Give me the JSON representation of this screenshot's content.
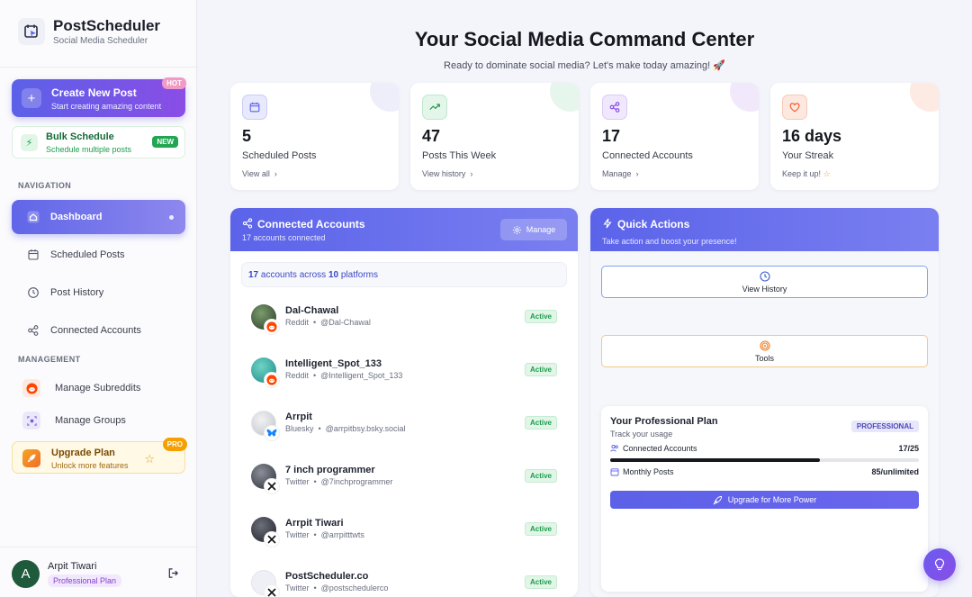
{
  "app": {
    "name": "PostScheduler",
    "tagline": "Social Media Scheduler"
  },
  "sidebar": {
    "create": {
      "title": "Create New Post",
      "subtitle": "Start creating amazing content",
      "badge": "HOT"
    },
    "bulk": {
      "title": "Bulk Schedule",
      "subtitle": "Schedule multiple posts",
      "badge": "NEW"
    },
    "nav_label": "NAVIGATION",
    "nav": [
      {
        "label": "Dashboard",
        "icon": "home-icon"
      },
      {
        "label": "Scheduled Posts",
        "icon": "calendar-icon"
      },
      {
        "label": "Post History",
        "icon": "clock-icon"
      },
      {
        "label": "Connected Accounts",
        "icon": "share-icon"
      }
    ],
    "mgmt_label": "MANAGEMENT",
    "mgmt": [
      {
        "label": "Manage Subreddits",
        "icon": "reddit-icon"
      },
      {
        "label": "Manage Groups",
        "icon": "group-icon"
      }
    ],
    "upgrade": {
      "title": "Upgrade Plan",
      "subtitle": "Unlock more features",
      "badge": "PRO"
    },
    "user": {
      "initial": "A",
      "name": "Arpit Tiwari",
      "plan": "Professional Plan"
    }
  },
  "header": {
    "title": "Your Social Media Command Center",
    "subtitle": "Ready to dominate social media? Let's make today amazing! 🚀"
  },
  "stats": [
    {
      "value": "5",
      "label": "Scheduled Posts",
      "link": "View all",
      "icon": "calendar-icon",
      "accent": "#5b63e9"
    },
    {
      "value": "47",
      "label": "Posts This Week",
      "link": "View history",
      "icon": "trend-icon",
      "accent": "#1e9c4e"
    },
    {
      "value": "17",
      "label": "Connected Accounts",
      "link": "Manage",
      "icon": "share-icon",
      "accent": "#8a4de6"
    },
    {
      "value": "16 days",
      "label": "Your Streak",
      "link": "Keep it up!",
      "icon": "heart-icon",
      "accent": "#ef5a2a"
    }
  ],
  "accounts_panel": {
    "title": "Connected Accounts",
    "subtitle": "17 accounts connected",
    "manage_label": "Manage",
    "summary": {
      "count": "17",
      "mid": "accounts across",
      "platforms": "10",
      "end": "platforms"
    },
    "accounts": [
      {
        "name": "Dal-Chawal",
        "platform": "Reddit",
        "handle": "@Dal-Chawal",
        "status": "Active"
      },
      {
        "name": "Intelligent_Spot_133",
        "platform": "Reddit",
        "handle": "@Intelligent_Spot_133",
        "status": "Active"
      },
      {
        "name": "Arrpit",
        "platform": "Bluesky",
        "handle": "@arrpitbsy.bsky.social",
        "status": "Active"
      },
      {
        "name": "7 inch programmer",
        "platform": "Twitter",
        "handle": "@7inchprogrammer",
        "status": "Active"
      },
      {
        "name": "Arrpit Tiwari",
        "platform": "Twitter",
        "handle": "@arrpitttwts",
        "status": "Active"
      },
      {
        "name": "PostScheduler.co",
        "platform": "Twitter",
        "handle": "@postschedulerco",
        "status": "Active"
      }
    ]
  },
  "quick_actions": {
    "title": "Quick Actions",
    "subtitle": "Take action and boost your presence!",
    "buttons": [
      {
        "label": "View History",
        "icon": "clock-icon"
      },
      {
        "label": "Tools",
        "icon": "target-icon"
      }
    ]
  },
  "plan": {
    "title": "Your Professional Plan",
    "subtitle": "Track your usage",
    "badge": "PROFESSIONAL",
    "connected_label": "Connected Accounts",
    "connected_value": "17/25",
    "connected_fraction": 0.68,
    "monthly_label": "Monthly Posts",
    "monthly_value": "85/unlimited",
    "upgrade_label": "Upgrade for More Power"
  }
}
